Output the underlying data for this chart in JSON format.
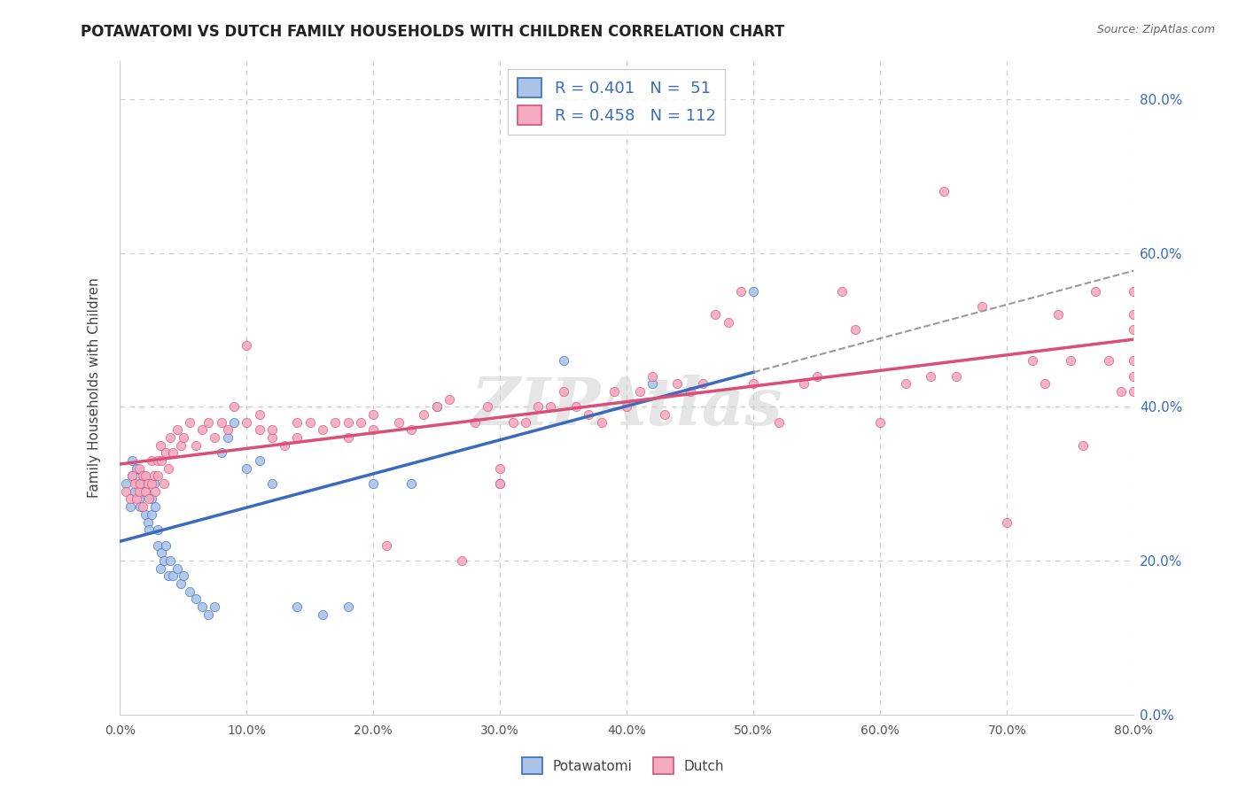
{
  "title": "POTAWATOMI VS DUTCH FAMILY HOUSEHOLDS WITH CHILDREN CORRELATION CHART",
  "source": "Source: ZipAtlas.com",
  "ylabel": "Family Households with Children",
  "xlim": [
    0.0,
    0.8
  ],
  "ylim": [
    0.0,
    0.85
  ],
  "potawatomi_color": "#aac4e8",
  "dutch_color": "#f4aabf",
  "potawatomi_line_color": "#3a6bbf",
  "dutch_line_color": "#d94f78",
  "r_potawatomi": 0.401,
  "n_potawatomi": 51,
  "r_dutch": 0.458,
  "n_dutch": 112,
  "background_color": "#ffffff",
  "grid_color": "#cccccc",
  "watermark": "ZIPAtlas",
  "pot_x": [
    0.005,
    0.008,
    0.01,
    0.01,
    0.012,
    0.013,
    0.015,
    0.015,
    0.016,
    0.018,
    0.02,
    0.02,
    0.022,
    0.023,
    0.025,
    0.025,
    0.027,
    0.028,
    0.03,
    0.03,
    0.032,
    0.033,
    0.035,
    0.036,
    0.038,
    0.04,
    0.042,
    0.045,
    0.048,
    0.05,
    0.055,
    0.06,
    0.065,
    0.07,
    0.075,
    0.08,
    0.085,
    0.09,
    0.1,
    0.11,
    0.12,
    0.14,
    0.16,
    0.18,
    0.2,
    0.23,
    0.25,
    0.3,
    0.35,
    0.42,
    0.5
  ],
  "pot_y": [
    0.3,
    0.27,
    0.33,
    0.31,
    0.29,
    0.32,
    0.28,
    0.3,
    0.27,
    0.31,
    0.26,
    0.29,
    0.25,
    0.24,
    0.28,
    0.26,
    0.3,
    0.27,
    0.22,
    0.24,
    0.19,
    0.21,
    0.2,
    0.22,
    0.18,
    0.2,
    0.18,
    0.19,
    0.17,
    0.18,
    0.16,
    0.15,
    0.14,
    0.13,
    0.14,
    0.34,
    0.36,
    0.38,
    0.32,
    0.33,
    0.3,
    0.14,
    0.13,
    0.14,
    0.3,
    0.3,
    0.4,
    0.3,
    0.46,
    0.43,
    0.55
  ],
  "dutch_x": [
    0.005,
    0.008,
    0.01,
    0.012,
    0.013,
    0.015,
    0.015,
    0.016,
    0.018,
    0.018,
    0.02,
    0.02,
    0.022,
    0.023,
    0.025,
    0.025,
    0.027,
    0.028,
    0.03,
    0.03,
    0.032,
    0.033,
    0.035,
    0.036,
    0.038,
    0.04,
    0.042,
    0.045,
    0.048,
    0.05,
    0.055,
    0.06,
    0.065,
    0.07,
    0.075,
    0.08,
    0.085,
    0.09,
    0.1,
    0.1,
    0.11,
    0.11,
    0.12,
    0.12,
    0.13,
    0.14,
    0.14,
    0.15,
    0.16,
    0.17,
    0.18,
    0.18,
    0.19,
    0.2,
    0.2,
    0.21,
    0.22,
    0.23,
    0.24,
    0.25,
    0.26,
    0.27,
    0.28,
    0.29,
    0.3,
    0.3,
    0.31,
    0.32,
    0.33,
    0.34,
    0.35,
    0.36,
    0.37,
    0.38,
    0.39,
    0.4,
    0.41,
    0.42,
    0.43,
    0.44,
    0.45,
    0.46,
    0.47,
    0.48,
    0.49,
    0.5,
    0.52,
    0.54,
    0.55,
    0.57,
    0.58,
    0.6,
    0.62,
    0.64,
    0.65,
    0.66,
    0.68,
    0.7,
    0.72,
    0.73,
    0.74,
    0.75,
    0.76,
    0.77,
    0.78,
    0.79,
    0.8,
    0.8,
    0.8,
    0.8,
    0.8,
    0.8
  ],
  "dutch_y": [
    0.29,
    0.28,
    0.31,
    0.3,
    0.28,
    0.32,
    0.29,
    0.3,
    0.31,
    0.27,
    0.29,
    0.31,
    0.3,
    0.28,
    0.33,
    0.3,
    0.31,
    0.29,
    0.33,
    0.31,
    0.35,
    0.33,
    0.3,
    0.34,
    0.32,
    0.36,
    0.34,
    0.37,
    0.35,
    0.36,
    0.38,
    0.35,
    0.37,
    0.38,
    0.36,
    0.38,
    0.37,
    0.4,
    0.38,
    0.48,
    0.37,
    0.39,
    0.36,
    0.37,
    0.35,
    0.38,
    0.36,
    0.38,
    0.37,
    0.38,
    0.38,
    0.36,
    0.38,
    0.37,
    0.39,
    0.22,
    0.38,
    0.37,
    0.39,
    0.4,
    0.41,
    0.2,
    0.38,
    0.4,
    0.32,
    0.3,
    0.38,
    0.38,
    0.4,
    0.4,
    0.42,
    0.4,
    0.39,
    0.38,
    0.42,
    0.4,
    0.42,
    0.44,
    0.39,
    0.43,
    0.42,
    0.43,
    0.52,
    0.51,
    0.55,
    0.43,
    0.38,
    0.43,
    0.44,
    0.55,
    0.5,
    0.38,
    0.43,
    0.44,
    0.68,
    0.44,
    0.53,
    0.25,
    0.46,
    0.43,
    0.52,
    0.46,
    0.35,
    0.55,
    0.46,
    0.42,
    0.55,
    0.44,
    0.52,
    0.46,
    0.42,
    0.5
  ]
}
